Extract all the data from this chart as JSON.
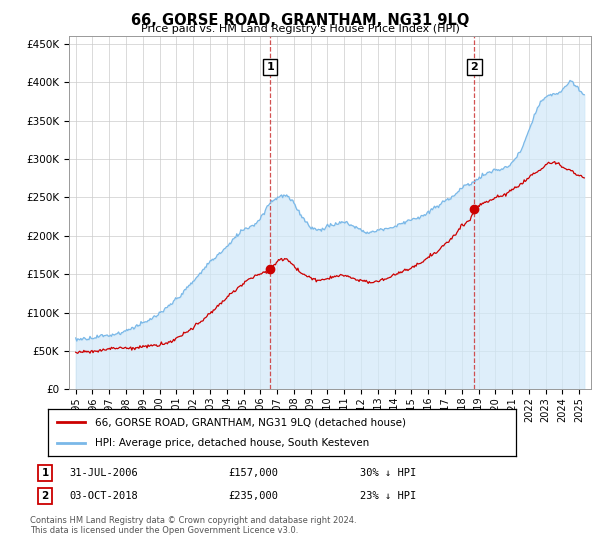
{
  "title": "66, GORSE ROAD, GRANTHAM, NG31 9LQ",
  "subtitle": "Price paid vs. HM Land Registry's House Price Index (HPI)",
  "ylabel_ticks": [
    "£0",
    "£50K",
    "£100K",
    "£150K",
    "£200K",
    "£250K",
    "£300K",
    "£350K",
    "£400K",
    "£450K"
  ],
  "ytick_vals": [
    0,
    50000,
    100000,
    150000,
    200000,
    250000,
    300000,
    350000,
    400000,
    450000
  ],
  "ylim": [
    0,
    460000
  ],
  "xlim_start": 1994.6,
  "xlim_end": 2025.7,
  "sale1_date": 2006.58,
  "sale1_price": 157000,
  "sale2_date": 2018.75,
  "sale2_price": 235000,
  "hpi_color": "#7ab8e8",
  "hpi_fill_color": "#d0e8f8",
  "price_color": "#cc0000",
  "dashed_color": "#cc3333",
  "legend_line1": "66, GORSE ROAD, GRANTHAM, NG31 9LQ (detached house)",
  "legend_line2": "HPI: Average price, detached house, South Kesteven",
  "footer": "Contains HM Land Registry data © Crown copyright and database right 2024.\nThis data is licensed under the Open Government Licence v3.0.",
  "background_color": "#ffffff",
  "grid_color": "#cccccc",
  "xtick_years": [
    1995,
    1996,
    1997,
    1998,
    1999,
    2000,
    2001,
    2002,
    2003,
    2004,
    2005,
    2006,
    2007,
    2008,
    2009,
    2010,
    2011,
    2012,
    2013,
    2014,
    2015,
    2016,
    2017,
    2018,
    2019,
    2020,
    2021,
    2022,
    2023,
    2024,
    2025
  ]
}
